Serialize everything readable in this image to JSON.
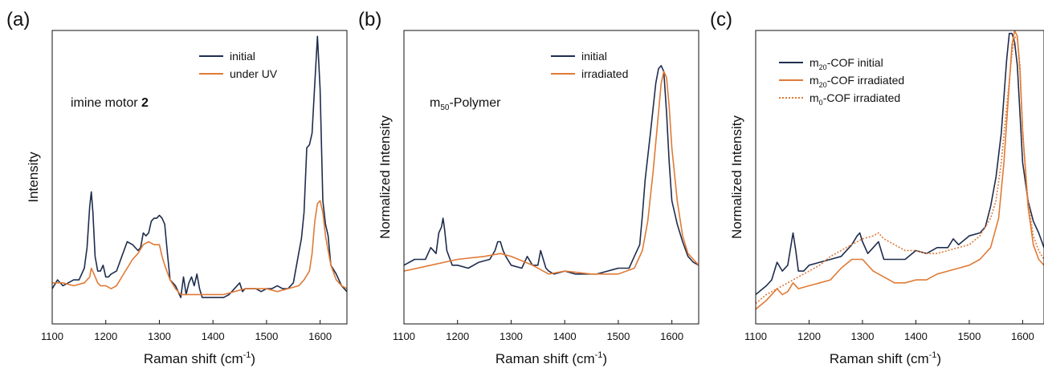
{
  "colors": {
    "initial": "#1e2d4e",
    "irradiated": "#e07a36"
  },
  "chart_data": [
    {
      "type": "line",
      "panel_label": "(a)",
      "annotation": {
        "prefix": "imine motor ",
        "bold": "2"
      },
      "xlabel": "Raman shift (cm",
      "xlabel_sup": "-1",
      "xlabel_close": ")",
      "ylabel": "Intensity",
      "xlim": [
        1100,
        1650
      ],
      "ylim": [
        0,
        1
      ],
      "xticks": [
        1100,
        1200,
        1300,
        1400,
        1500,
        1600
      ],
      "series": [
        {
          "name": "initial",
          "sub": "",
          "name_rest": "",
          "color": "#1e2d4e",
          "dash": "",
          "x": [
            1100,
            1110,
            1120,
            1130,
            1140,
            1150,
            1160,
            1165,
            1170,
            1173,
            1176,
            1180,
            1185,
            1190,
            1195,
            1200,
            1205,
            1210,
            1220,
            1230,
            1240,
            1250,
            1260,
            1265,
            1270,
            1275,
            1280,
            1285,
            1290,
            1295,
            1300,
            1305,
            1310,
            1315,
            1320,
            1330,
            1340,
            1345,
            1350,
            1355,
            1360,
            1365,
            1370,
            1375,
            1380,
            1390,
            1400,
            1410,
            1420,
            1430,
            1440,
            1450,
            1455,
            1460,
            1470,
            1480,
            1490,
            1500,
            1510,
            1520,
            1530,
            1540,
            1550,
            1560,
            1565,
            1570,
            1575,
            1580,
            1585,
            1590,
            1595,
            1600,
            1605,
            1610,
            1615,
            1620,
            1630,
            1640,
            1650
          ],
          "y": [
            0.12,
            0.15,
            0.13,
            0.14,
            0.15,
            0.15,
            0.19,
            0.26,
            0.4,
            0.45,
            0.38,
            0.23,
            0.18,
            0.18,
            0.2,
            0.16,
            0.16,
            0.17,
            0.18,
            0.23,
            0.28,
            0.27,
            0.25,
            0.26,
            0.31,
            0.3,
            0.31,
            0.35,
            0.36,
            0.36,
            0.37,
            0.36,
            0.34,
            0.24,
            0.15,
            0.13,
            0.09,
            0.16,
            0.1,
            0.14,
            0.16,
            0.13,
            0.17,
            0.12,
            0.09,
            0.09,
            0.09,
            0.09,
            0.09,
            0.1,
            0.12,
            0.14,
            0.11,
            0.12,
            0.12,
            0.12,
            0.11,
            0.12,
            0.12,
            0.13,
            0.12,
            0.12,
            0.14,
            0.24,
            0.29,
            0.38,
            0.6,
            0.61,
            0.65,
            0.82,
            0.98,
            0.8,
            0.42,
            0.34,
            0.3,
            0.2,
            0.17,
            0.13,
            0.11
          ]
        },
        {
          "name": "under UV",
          "sub": "",
          "name_rest": "",
          "color": "#e07a36",
          "dash": "",
          "x": [
            1100,
            1120,
            1140,
            1160,
            1170,
            1173,
            1178,
            1185,
            1190,
            1200,
            1210,
            1220,
            1230,
            1250,
            1260,
            1270,
            1280,
            1290,
            1300,
            1305,
            1310,
            1320,
            1330,
            1340,
            1350,
            1360,
            1380,
            1400,
            1420,
            1440,
            1460,
            1480,
            1500,
            1520,
            1540,
            1560,
            1570,
            1580,
            1585,
            1590,
            1595,
            1600,
            1605,
            1610,
            1620,
            1630,
            1640,
            1650
          ],
          "y": [
            0.14,
            0.14,
            0.13,
            0.14,
            0.16,
            0.19,
            0.17,
            0.14,
            0.13,
            0.13,
            0.12,
            0.13,
            0.16,
            0.22,
            0.24,
            0.27,
            0.28,
            0.27,
            0.27,
            0.23,
            0.2,
            0.15,
            0.12,
            0.1,
            0.1,
            0.1,
            0.1,
            0.1,
            0.1,
            0.11,
            0.12,
            0.12,
            0.12,
            0.11,
            0.12,
            0.13,
            0.15,
            0.18,
            0.24,
            0.35,
            0.41,
            0.42,
            0.38,
            0.3,
            0.2,
            0.15,
            0.13,
            0.12
          ]
        }
      ]
    },
    {
      "type": "line",
      "panel_label": "(b)",
      "annotation": {
        "prefix": "m",
        "sub": "50",
        "rest": "-Polymer"
      },
      "xlabel": "Raman shift (cm",
      "xlabel_sup": "-1",
      "xlabel_close": ")",
      "ylabel": "Normalized Intensity",
      "xlim": [
        1100,
        1650
      ],
      "ylim": [
        0,
        1
      ],
      "xticks": [
        1100,
        1200,
        1300,
        1400,
        1500,
        1600
      ],
      "series": [
        {
          "name": "initial",
          "sub": "",
          "name_rest": "",
          "color": "#1e2d4e",
          "dash": "",
          "x": [
            1100,
            1120,
            1140,
            1150,
            1160,
            1165,
            1170,
            1173,
            1176,
            1180,
            1190,
            1200,
            1220,
            1240,
            1260,
            1270,
            1275,
            1280,
            1285,
            1290,
            1300,
            1320,
            1330,
            1340,
            1350,
            1355,
            1360,
            1365,
            1370,
            1380,
            1400,
            1420,
            1440,
            1460,
            1480,
            1500,
            1520,
            1530,
            1540,
            1545,
            1550,
            1560,
            1570,
            1575,
            1580,
            1585,
            1590,
            1595,
            1600,
            1610,
            1620,
            1630,
            1640,
            1650
          ],
          "y": [
            0.2,
            0.22,
            0.22,
            0.26,
            0.24,
            0.31,
            0.33,
            0.36,
            0.32,
            0.25,
            0.2,
            0.2,
            0.19,
            0.21,
            0.22,
            0.25,
            0.28,
            0.28,
            0.25,
            0.23,
            0.2,
            0.19,
            0.23,
            0.2,
            0.2,
            0.25,
            0.22,
            0.19,
            0.18,
            0.17,
            0.18,
            0.17,
            0.17,
            0.17,
            0.18,
            0.19,
            0.19,
            0.23,
            0.27,
            0.37,
            0.49,
            0.65,
            0.82,
            0.87,
            0.88,
            0.86,
            0.72,
            0.55,
            0.42,
            0.34,
            0.28,
            0.23,
            0.21,
            0.2
          ]
        },
        {
          "name": "irradiated",
          "sub": "",
          "name_rest": "",
          "color": "#e07a36",
          "dash": "",
          "x": [
            1100,
            1150,
            1200,
            1250,
            1280,
            1300,
            1340,
            1370,
            1400,
            1450,
            1500,
            1530,
            1545,
            1555,
            1565,
            1575,
            1580,
            1585,
            1590,
            1595,
            1600,
            1610,
            1620,
            1630,
            1650
          ],
          "y": [
            0.18,
            0.2,
            0.22,
            0.23,
            0.24,
            0.23,
            0.2,
            0.17,
            0.18,
            0.17,
            0.17,
            0.19,
            0.25,
            0.35,
            0.52,
            0.72,
            0.82,
            0.86,
            0.84,
            0.74,
            0.6,
            0.42,
            0.3,
            0.24,
            0.2
          ]
        }
      ]
    },
    {
      "type": "line",
      "panel_label": "(c)",
      "annotation": null,
      "xlabel": "Raman shift (cm",
      "xlabel_sup": "-1",
      "xlabel_close": ")",
      "ylabel": "Normalized Intensity",
      "xlim": [
        1100,
        1640
      ],
      "ylim": [
        0,
        1
      ],
      "xticks": [
        1100,
        1200,
        1300,
        1400,
        1500,
        1600
      ],
      "series": [
        {
          "name": "m",
          "sub": "20",
          "name_rest": "-COF initial",
          "color": "#1e2d4e",
          "dash": "",
          "x": [
            1100,
            1120,
            1130,
            1140,
            1150,
            1160,
            1170,
            1175,
            1180,
            1190,
            1200,
            1220,
            1240,
            1260,
            1280,
            1290,
            1295,
            1300,
            1310,
            1320,
            1330,
            1340,
            1360,
            1380,
            1400,
            1420,
            1440,
            1460,
            1470,
            1480,
            1500,
            1520,
            1530,
            1540,
            1550,
            1560,
            1570,
            1575,
            1580,
            1585,
            1590,
            1600,
            1610,
            1620,
            1630,
            1640
          ],
          "y": [
            0.1,
            0.13,
            0.15,
            0.21,
            0.18,
            0.2,
            0.31,
            0.25,
            0.18,
            0.18,
            0.2,
            0.21,
            0.22,
            0.23,
            0.27,
            0.3,
            0.31,
            0.28,
            0.24,
            0.26,
            0.28,
            0.22,
            0.22,
            0.22,
            0.25,
            0.24,
            0.26,
            0.26,
            0.29,
            0.27,
            0.3,
            0.31,
            0.33,
            0.4,
            0.5,
            0.65,
            0.9,
            0.99,
            0.99,
            0.96,
            0.88,
            0.55,
            0.42,
            0.35,
            0.31,
            0.26
          ]
        },
        {
          "name": "m",
          "sub": "20",
          "name_rest": "-COF irradiated",
          "color": "#e07a36",
          "dash": "",
          "x": [
            1100,
            1120,
            1140,
            1150,
            1160,
            1170,
            1180,
            1200,
            1220,
            1240,
            1260,
            1280,
            1300,
            1320,
            1340,
            1360,
            1380,
            1400,
            1420,
            1440,
            1460,
            1480,
            1500,
            1520,
            1540,
            1555,
            1565,
            1575,
            1580,
            1585,
            1590,
            1595,
            1600,
            1610,
            1620,
            1630,
            1640
          ],
          "y": [
            0.05,
            0.08,
            0.12,
            0.1,
            0.11,
            0.14,
            0.12,
            0.13,
            0.14,
            0.15,
            0.19,
            0.22,
            0.22,
            0.18,
            0.16,
            0.14,
            0.14,
            0.15,
            0.15,
            0.17,
            0.18,
            0.19,
            0.2,
            0.22,
            0.26,
            0.36,
            0.55,
            0.82,
            0.95,
            1.0,
            0.98,
            0.86,
            0.66,
            0.4,
            0.27,
            0.22,
            0.2
          ]
        },
        {
          "name": "m",
          "sub": "0",
          "name_rest": "-COF irradiated",
          "color": "#e07a36",
          "dash": "2,2",
          "x": [
            1100,
            1120,
            1140,
            1160,
            1180,
            1200,
            1220,
            1240,
            1260,
            1280,
            1300,
            1320,
            1330,
            1340,
            1360,
            1380,
            1400,
            1420,
            1440,
            1460,
            1480,
            1500,
            1520,
            1540,
            1550,
            1560,
            1570,
            1580,
            1585,
            1590,
            1595,
            1600,
            1610,
            1620,
            1630,
            1640
          ],
          "y": [
            0.07,
            0.1,
            0.12,
            0.14,
            0.16,
            0.18,
            0.2,
            0.23,
            0.25,
            0.27,
            0.29,
            0.3,
            0.31,
            0.29,
            0.27,
            0.25,
            0.25,
            0.24,
            0.24,
            0.25,
            0.26,
            0.27,
            0.3,
            0.36,
            0.42,
            0.55,
            0.74,
            0.92,
            0.98,
            0.97,
            0.88,
            0.65,
            0.42,
            0.3,
            0.25,
            0.22
          ]
        }
      ]
    }
  ]
}
